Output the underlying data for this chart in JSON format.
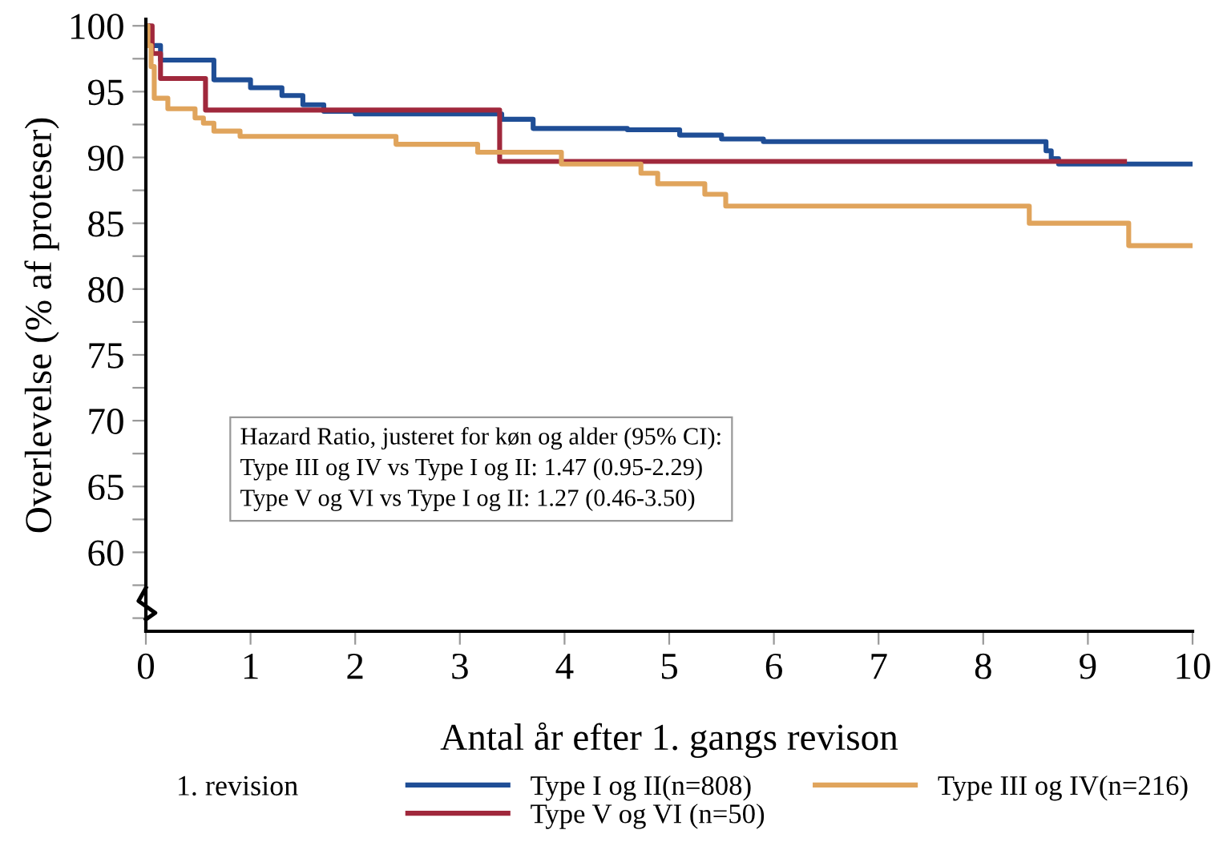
{
  "chart_data": {
    "type": "step",
    "xlabel": "Antal år efter 1. gangs revison",
    "ylabel": "Overlevelse (% af proteser)",
    "xlim": [
      0,
      10
    ],
    "xticks": [
      0,
      1,
      2,
      3,
      4,
      5,
      6,
      7,
      8,
      9,
      10
    ],
    "ylim": [
      54,
      100.5
    ],
    "yticks": [
      {
        "value": 55,
        "label": null
      },
      {
        "value": 57.5,
        "label": null
      },
      60,
      {
        "value": 62.5,
        "label": null
      },
      65,
      {
        "value": 67.5,
        "label": null
      },
      70,
      {
        "value": 72.5,
        "label": null
      },
      75,
      {
        "value": 77.5,
        "label": null
      },
      80,
      {
        "value": 82.5,
        "label": null
      },
      85,
      {
        "value": 87.5,
        "label": null
      },
      90,
      {
        "value": 92.5,
        "label": null
      },
      95,
      {
        "value": 97.5,
        "label": null
      },
      100
    ],
    "grid": false,
    "legend": "bottom",
    "legend_title": "1. revision",
    "line_style": "solid",
    "marker": "none",
    "annotations": [
      "Hazard Ratio, justeret for køn og alder (95% CI):\nType III og IV vs Type I og II: 1.47 (0.95-2.29)\nType V og VI vs Type I og II: 1.27 (0.46-3.50)"
    ],
    "series": [
      {
        "name": "Type I og II(n=808)",
        "color": "#1f4e96",
        "x": [
          0,
          0.03,
          0.14,
          0.65,
          1.0,
          1.3,
          1.5,
          1.7,
          2.0,
          3.4,
          3.7,
          4.6,
          5.1,
          5.5,
          5.9,
          8.6,
          8.65,
          8.72,
          10
        ],
        "values": [
          100,
          98.5,
          97.4,
          95.9,
          95.3,
          94.7,
          94.0,
          93.5,
          93.3,
          92.9,
          92.2,
          92.1,
          91.7,
          91.4,
          91.2,
          90.5,
          89.9,
          89.5,
          89.5
        ]
      },
      {
        "name": "Type V og VI (n=50)",
        "color": "#a0283c",
        "x": [
          0,
          0.06,
          0.14,
          0.57,
          3.38,
          9.35
        ],
        "values": [
          100,
          97.9,
          96.0,
          93.6,
          89.7,
          89.7
        ]
      },
      {
        "name": "Type III og IV(n=216)",
        "color": "#e0a45c",
        "x": [
          0,
          0.02,
          0.05,
          0.08,
          0.21,
          0.47,
          0.55,
          0.65,
          0.9,
          2.39,
          3.17,
          3.97,
          4.73,
          4.89,
          5.34,
          5.54,
          8.44,
          9.39,
          10
        ],
        "values": [
          100,
          98.5,
          96.9,
          94.5,
          93.7,
          93.0,
          92.6,
          92.0,
          91.6,
          91.0,
          90.4,
          89.5,
          88.8,
          88.0,
          87.2,
          86.3,
          85.0,
          83.3,
          83.3
        ]
      }
    ]
  }
}
